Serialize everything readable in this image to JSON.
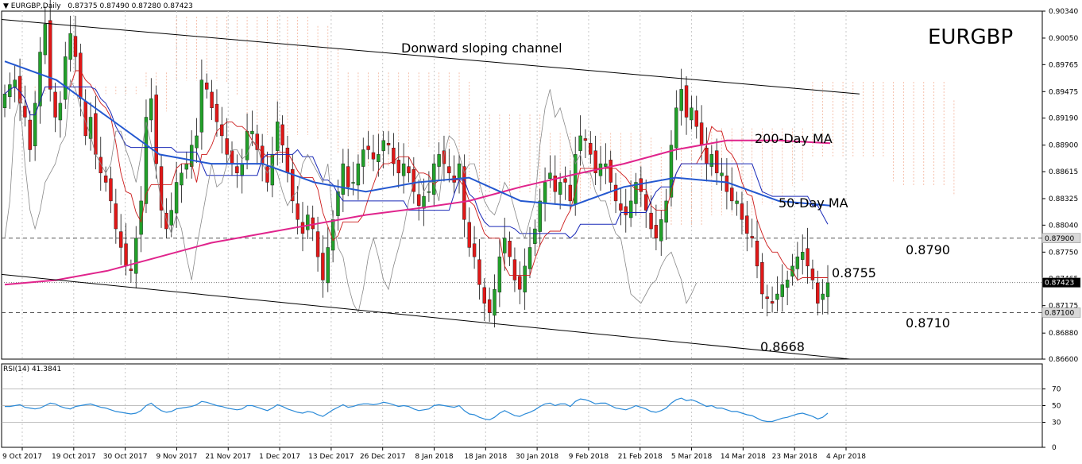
{
  "header": {
    "symbol_line": "EURGBP,Daily",
    "ohlc": "0.87375 0.87490 0.87280 0.87423"
  },
  "rsi": {
    "label": "RSI(14) 41.3841"
  },
  "colors": {
    "background": "#ffffff",
    "grid": "#c8c8c8",
    "bull": "#22a02a",
    "bear": "#e01818",
    "ma50": "#2458d0",
    "ma200": "#e0248c",
    "tenkan": "#cc1a1a",
    "kijun": "#1a2ab8",
    "chikou": "#888888",
    "cloud": "#f0a080",
    "rsi_line": "#2a8ad8"
  },
  "chart_data": {
    "type": "candlestick",
    "title": "EURGBP",
    "ylim": [
      0.866,
      0.9034
    ],
    "y_ticks": [
      "0.90340",
      "0.90050",
      "0.89765",
      "0.89475",
      "0.89190",
      "0.88900",
      "0.88615",
      "0.88325",
      "0.88040",
      "0.87750",
      "0.87465",
      "0.87175",
      "0.86880",
      "0.86600"
    ],
    "x_tick_labels": [
      "9 Oct 2017",
      "19 Oct 2017",
      "30 Oct 2017",
      "9 Nov 2017",
      "21 Nov 2017",
      "1 Dec 2017",
      "13 Dec 2017",
      "26 Dec 2017",
      "8 Jan 2018",
      "18 Jan 2018",
      "30 Jan 2018",
      "9 Feb 2018",
      "21 Feb 2018",
      "5 Mar 2018",
      "14 Mar 2018",
      "23 Mar 2018",
      "4 Apr 2018"
    ],
    "closes": [
      0.8945,
      0.8955,
      0.896,
      0.8935,
      0.892,
      0.8885,
      0.8935,
      0.899,
      0.902,
      0.895,
      0.892,
      0.8935,
      0.8985,
      0.901,
      0.8985,
      0.894,
      0.89,
      0.892,
      0.888,
      0.886,
      0.885,
      0.883,
      0.88,
      0.878,
      0.876,
      0.8755,
      0.879,
      0.883,
      0.892,
      0.894,
      0.887,
      0.882,
      0.88,
      0.882,
      0.885,
      0.886,
      0.887,
      0.889,
      0.89,
      0.896,
      0.895,
      0.893,
      0.8915,
      0.89,
      0.888,
      0.887,
      0.886,
      0.887,
      0.8905,
      0.8905,
      0.8885,
      0.887,
      0.885,
      0.888,
      0.8915,
      0.889,
      0.886,
      0.883,
      0.881,
      0.8795,
      0.8815,
      0.88,
      0.877,
      0.8745,
      0.878,
      0.881,
      0.884,
      0.887,
      0.8845,
      0.885,
      0.887,
      0.8885,
      0.8885,
      0.8875,
      0.888,
      0.8895,
      0.889,
      0.887,
      0.886,
      0.887,
      0.886,
      0.884,
      0.8825,
      0.8835,
      0.884,
      0.887,
      0.888,
      0.887,
      0.886,
      0.885,
      0.887,
      0.881,
      0.878,
      0.877,
      0.874,
      0.872,
      0.871,
      0.8735,
      0.877,
      0.879,
      0.877,
      0.8745,
      0.8735,
      0.876,
      0.878,
      0.88,
      0.883,
      0.885,
      0.886,
      0.884,
      0.885,
      0.885,
      0.883,
      0.888,
      0.89,
      0.8895,
      0.888,
      0.886,
      0.887,
      0.887,
      0.885,
      0.883,
      0.882,
      0.8815,
      0.883,
      0.885,
      0.884,
      0.882,
      0.88,
      0.879,
      0.881,
      0.883,
      0.889,
      0.893,
      0.895,
      0.892,
      0.893,
      0.891,
      0.889,
      0.887,
      0.888,
      0.886,
      0.886,
      0.884,
      0.883,
      0.883,
      0.881,
      0.8795,
      0.879,
      0.876,
      0.873,
      0.8725,
      0.872,
      0.873,
      0.874,
      0.8745,
      0.876,
      0.877,
      0.8775,
      0.876,
      0.8745,
      0.872,
      0.873,
      0.8742
    ],
    "series": [
      {
        "name": "200-Day MA",
        "values_sampled": [
          0.874,
          0.8745,
          0.8755,
          0.877,
          0.8785,
          0.8795,
          0.8805,
          0.8815,
          0.8822,
          0.883,
          0.8845,
          0.8858,
          0.887,
          0.8885,
          0.8895,
          0.8895,
          0.8892
        ]
      },
      {
        "name": "50-Day MA",
        "values_sampled": [
          0.898,
          0.896,
          0.892,
          0.888,
          0.887,
          0.887,
          0.885,
          0.884,
          0.885,
          0.8855,
          0.883,
          0.8825,
          0.8845,
          0.8855,
          0.885,
          0.883,
          0.8825
        ]
      }
    ],
    "annotations": [
      {
        "text": "EURGBP",
        "role": "title"
      },
      {
        "text": "Donward sloping channel"
      },
      {
        "text": "200-Day MA"
      },
      {
        "text": "50-Day MA"
      },
      {
        "text": "0.8790",
        "level": 0.879
      },
      {
        "text": "0.8755",
        "level": 0.8755
      },
      {
        "text": "0.8710",
        "level": 0.871
      },
      {
        "text": "0.8668",
        "level": 0.8668
      }
    ],
    "price_tags": [
      {
        "text": "0.87900",
        "level": 0.879
      },
      {
        "text": "0.87423",
        "level": 0.87423,
        "current": true
      },
      {
        "text": "0.87100",
        "level": 0.871
      }
    ],
    "rsi": {
      "period": 14,
      "current": 41.3841,
      "levels": [
        70,
        50,
        30
      ],
      "ticks": [
        "70",
        "50",
        "30",
        "0"
      ],
      "values": [
        49,
        49,
        50,
        51,
        48,
        47,
        46,
        47,
        50,
        53,
        52,
        49,
        47,
        46,
        49,
        50,
        51,
        52,
        50,
        48,
        47,
        45,
        43,
        42,
        41,
        40,
        41,
        44,
        50,
        53,
        48,
        44,
        42,
        43,
        46,
        47,
        48,
        49,
        51,
        55,
        54,
        52,
        50,
        49,
        47,
        46,
        45,
        46,
        50,
        50,
        48,
        46,
        44,
        47,
        51,
        49,
        46,
        44,
        42,
        41,
        43,
        42,
        39,
        37,
        41,
        45,
        48,
        51,
        48,
        49,
        51,
        52,
        52,
        51,
        52,
        54,
        53,
        51,
        49,
        50,
        49,
        46,
        44,
        45,
        46,
        50,
        51,
        50,
        49,
        48,
        50,
        44,
        40,
        39,
        36,
        34,
        33,
        36,
        41,
        44,
        41,
        38,
        37,
        40,
        42,
        45,
        49,
        52,
        53,
        50,
        52,
        52,
        49,
        55,
        58,
        57,
        55,
        52,
        53,
        53,
        50,
        47,
        46,
        45,
        47,
        50,
        48,
        46,
        43,
        42,
        44,
        47,
        53,
        57,
        59,
        56,
        57,
        55,
        52,
        49,
        50,
        47,
        47,
        45,
        43,
        43,
        41,
        39,
        38,
        35,
        32,
        31,
        31,
        33,
        35,
        36,
        38,
        40,
        41,
        39,
        37,
        34,
        36,
        41
      ]
    }
  }
}
